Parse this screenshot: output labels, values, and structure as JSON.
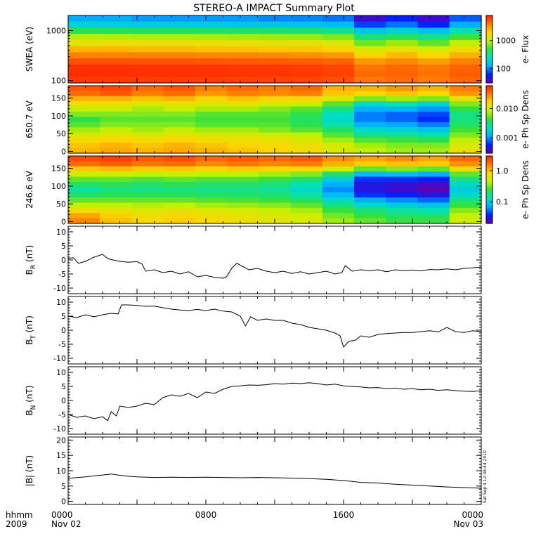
{
  "title": "STEREO-A IMPACT Summary Plot",
  "stamp": "Sat Sep  4 12:38:44 2010",
  "time_axis": {
    "left_label_top": "hhmm",
    "left_label_bottom": "2009",
    "ticks": [
      {
        "hhmm": "0000",
        "date": "Nov 02",
        "frac": 0.0
      },
      {
        "hhmm": "0800",
        "date": "",
        "frac": 0.3333
      },
      {
        "hhmm": "1600",
        "date": "",
        "frac": 0.6667
      },
      {
        "hhmm": "0000",
        "date": "Nov 03",
        "frac": 1.0
      }
    ]
  },
  "colors": {
    "colormap": [
      "#6a00a8",
      "#0020ff",
      "#00b0ff",
      "#00e0c0",
      "#30e040",
      "#c8f000",
      "#ffd400",
      "#ff7a00",
      "#ff2000"
    ],
    "trace": "#000000",
    "frame": "#000000"
  },
  "chart_data": [
    {
      "type": "heatmap",
      "panel": "swea",
      "ylabel": "SWEA (eV)",
      "yscale": "log",
      "ylim": [
        90,
        2000
      ],
      "yticks": [
        "100",
        "1000"
      ],
      "colorbar_label": "e- Flux",
      "colorbar_ticks": [
        "100",
        "1000"
      ],
      "colorbar_scale": "log",
      "colorbar_range": [
        30,
        8000
      ],
      "rows_eV": [
        2000,
        1400,
        1000,
        700,
        500,
        350,
        250,
        180,
        130,
        100,
        90
      ],
      "times_hr": [
        0,
        2,
        4,
        6,
        8,
        10,
        12,
        14,
        16,
        18,
        20,
        22,
        24
      ],
      "z": [
        [
          120,
          120,
          110,
          110,
          110,
          110,
          100,
          100,
          90,
          40,
          60,
          40,
          80
        ],
        [
          200,
          190,
          180,
          180,
          180,
          170,
          170,
          160,
          150,
          70,
          90,
          60,
          120
        ],
        [
          450,
          430,
          420,
          420,
          400,
          400,
          380,
          370,
          320,
          160,
          200,
          150,
          260
        ],
        [
          900,
          880,
          860,
          860,
          840,
          820,
          800,
          780,
          700,
          350,
          420,
          320,
          520
        ],
        [
          1500,
          1500,
          1450,
          1450,
          1400,
          1400,
          1350,
          1300,
          1200,
          650,
          800,
          600,
          950
        ],
        [
          2500,
          2500,
          2400,
          2400,
          2300,
          2300,
          2200,
          2200,
          2000,
          1200,
          1400,
          1100,
          1600
        ],
        [
          3800,
          3800,
          3700,
          3700,
          3600,
          3600,
          3500,
          3400,
          3200,
          2000,
          2400,
          1900,
          2600
        ],
        [
          5500,
          5500,
          5400,
          5400,
          5300,
          5200,
          5100,
          5000,
          4800,
          3200,
          3600,
          3000,
          3800
        ],
        [
          7000,
          7000,
          6900,
          6900,
          6800,
          6700,
          6600,
          6400,
          6000,
          4200,
          4600,
          4000,
          4800
        ],
        [
          7200,
          7200,
          7100,
          7100,
          7000,
          6900,
          6800,
          6600,
          6200,
          4500,
          4800,
          4200,
          5000
        ],
        [
          6500,
          6500,
          6400,
          6400,
          6300,
          6200,
          6100,
          6000,
          5600,
          4000,
          4400,
          3800,
          4600
        ]
      ]
    },
    {
      "type": "heatmap",
      "panel": "pad650",
      "ylabel": "650.7 eV",
      "ylim": [
        -5,
        185
      ],
      "yticks": [
        "0",
        "50",
        "100",
        "150"
      ],
      "colorbar_label": "e- Ph Sp Dens",
      "colorbar_ticks": [
        "0.001",
        "0.010"
      ],
      "colorbar_scale": "log",
      "colorbar_range": [
        0.0003,
        0.06
      ],
      "rows_deg": [
        180,
        165,
        150,
        135,
        120,
        105,
        90,
        75,
        60,
        45,
        30,
        15,
        0
      ],
      "times_hr": [
        0,
        2,
        4,
        6,
        8,
        10,
        12,
        14,
        16,
        18,
        20,
        22,
        24
      ],
      "z": [
        [
          0.04,
          0.045,
          0.035,
          0.04,
          0.03,
          0.035,
          0.03,
          0.035,
          0.02,
          0.02,
          0.025,
          0.02,
          0.03
        ],
        [
          0.035,
          0.04,
          0.03,
          0.035,
          0.025,
          0.03,
          0.028,
          0.03,
          0.018,
          0.015,
          0.018,
          0.015,
          0.025
        ],
        [
          0.02,
          0.02,
          0.018,
          0.02,
          0.016,
          0.018,
          0.016,
          0.015,
          0.01,
          0.006,
          0.007,
          0.006,
          0.012
        ],
        [
          0.012,
          0.012,
          0.01,
          0.011,
          0.01,
          0.011,
          0.009,
          0.008,
          0.005,
          0.002,
          0.0025,
          0.0018,
          0.006
        ],
        [
          0.008,
          0.008,
          0.007,
          0.008,
          0.007,
          0.007,
          0.006,
          0.005,
          0.003,
          0.0012,
          0.0012,
          0.001,
          0.004
        ],
        [
          0.006,
          0.006,
          0.006,
          0.006,
          0.005,
          0.005,
          0.005,
          0.004,
          0.0022,
          0.0009,
          0.0008,
          0.0007,
          0.003
        ],
        [
          0.004,
          0.005,
          0.005,
          0.005,
          0.0045,
          0.0045,
          0.0045,
          0.0035,
          0.002,
          0.0009,
          0.0008,
          0.0006,
          0.003
        ],
        [
          0.005,
          0.006,
          0.006,
          0.006,
          0.005,
          0.005,
          0.005,
          0.004,
          0.0025,
          0.0012,
          0.0011,
          0.0009,
          0.0035
        ],
        [
          0.007,
          0.008,
          0.007,
          0.008,
          0.007,
          0.007,
          0.006,
          0.005,
          0.0035,
          0.002,
          0.0018,
          0.0015,
          0.0045
        ],
        [
          0.01,
          0.011,
          0.01,
          0.011,
          0.01,
          0.01,
          0.009,
          0.008,
          0.005,
          0.003,
          0.0028,
          0.0025,
          0.006
        ],
        [
          0.014,
          0.016,
          0.014,
          0.016,
          0.014,
          0.013,
          0.012,
          0.01,
          0.007,
          0.005,
          0.0045,
          0.004,
          0.008
        ],
        [
          0.018,
          0.02,
          0.018,
          0.02,
          0.018,
          0.016,
          0.015,
          0.013,
          0.009,
          0.007,
          0.006,
          0.006,
          0.01
        ],
        [
          0.02,
          0.022,
          0.02,
          0.022,
          0.02,
          0.018,
          0.016,
          0.014,
          0.01,
          0.008,
          0.007,
          0.007,
          0.012
        ]
      ]
    },
    {
      "type": "heatmap",
      "panel": "pad246",
      "ylabel": "246.6 eV",
      "ylim": [
        -5,
        185
      ],
      "yticks": [
        "0",
        "50",
        "100",
        "150"
      ],
      "colorbar_label": "e- Ph Sp Dens",
      "colorbar_ticks": [
        "0.1",
        "1.0"
      ],
      "colorbar_scale": "log",
      "colorbar_range": [
        0.02,
        3
      ],
      "rows_deg": [
        180,
        165,
        150,
        135,
        120,
        105,
        90,
        75,
        60,
        45,
        30,
        15,
        0
      ],
      "times_hr": [
        0,
        2,
        4,
        6,
        8,
        10,
        12,
        14,
        16,
        18,
        20,
        22,
        24
      ],
      "z": [
        [
          2.2,
          2.4,
          2.0,
          2.2,
          1.8,
          2.0,
          1.8,
          2.0,
          1.4,
          1.2,
          1.4,
          1.2,
          1.8
        ],
        [
          1.8,
          2.0,
          1.7,
          1.8,
          1.5,
          1.7,
          1.5,
          1.6,
          1.1,
          0.9,
          1.0,
          0.9,
          1.4
        ],
        [
          0.9,
          1.0,
          0.9,
          0.9,
          0.8,
          0.9,
          0.8,
          0.8,
          0.5,
          0.3,
          0.35,
          0.3,
          0.7
        ],
        [
          0.5,
          0.5,
          0.45,
          0.5,
          0.45,
          0.45,
          0.4,
          0.35,
          0.2,
          0.08,
          0.09,
          0.07,
          0.3
        ],
        [
          0.3,
          0.3,
          0.28,
          0.3,
          0.28,
          0.28,
          0.25,
          0.2,
          0.1,
          0.04,
          0.04,
          0.035,
          0.18
        ],
        [
          0.2,
          0.22,
          0.2,
          0.22,
          0.2,
          0.2,
          0.18,
          0.14,
          0.07,
          0.03,
          0.028,
          0.025,
          0.12
        ],
        [
          0.15,
          0.18,
          0.17,
          0.18,
          0.17,
          0.17,
          0.16,
          0.12,
          0.06,
          0.03,
          0.026,
          0.022,
          0.1
        ],
        [
          0.2,
          0.22,
          0.22,
          0.22,
          0.2,
          0.2,
          0.19,
          0.15,
          0.08,
          0.04,
          0.035,
          0.03,
          0.12
        ],
        [
          0.3,
          0.3,
          0.3,
          0.3,
          0.28,
          0.27,
          0.25,
          0.2,
          0.12,
          0.07,
          0.06,
          0.05,
          0.18
        ],
        [
          0.45,
          0.45,
          0.42,
          0.45,
          0.4,
          0.38,
          0.35,
          0.3,
          0.18,
          0.12,
          0.1,
          0.09,
          0.25
        ],
        [
          0.7,
          0.6,
          0.55,
          0.6,
          0.55,
          0.5,
          0.45,
          0.4,
          0.25,
          0.18,
          0.15,
          0.14,
          0.35
        ],
        [
          1.2,
          0.9,
          0.7,
          0.8,
          0.7,
          0.65,
          0.55,
          0.5,
          0.32,
          0.25,
          0.2,
          0.2,
          0.45
        ],
        [
          1.5,
          1.0,
          0.8,
          0.9,
          0.8,
          0.7,
          0.6,
          0.55,
          0.38,
          0.3,
          0.25,
          0.25,
          0.5
        ]
      ]
    },
    {
      "type": "line",
      "panel": "br",
      "ylabel": "B",
      "ylabel_sub": "R",
      "ylabel_unit": " (nT)",
      "ylim": [
        -12,
        12
      ],
      "yticks": [
        "-10",
        "-5",
        "0",
        "5",
        "10"
      ],
      "x": [
        0,
        0.3,
        0.6,
        1.0,
        1.5,
        2.0,
        2.3,
        2.6,
        3.0,
        3.5,
        4.0,
        4.3,
        4.5,
        5.0,
        5.5,
        6.0,
        6.5,
        7.0,
        7.5,
        8.0,
        8.5,
        9.0,
        9.2,
        9.5,
        9.8,
        10.5,
        11.0,
        11.5,
        12.0,
        12.5,
        13.0,
        13.5,
        14.0,
        14.5,
        15.0,
        15.5,
        15.9,
        16.1,
        16.5,
        17.0,
        17.5,
        18.0,
        18.5,
        19.0,
        19.5,
        20.0,
        20.5,
        21.0,
        21.5,
        22.0,
        22.5,
        23.0,
        23.5,
        24.0
      ],
      "y": [
        0.5,
        0.8,
        -1.2,
        -0.5,
        1.0,
        2.0,
        0.5,
        0.0,
        -0.5,
        -0.8,
        -0.6,
        -1.5,
        -4.0,
        -3.5,
        -4.5,
        -4.0,
        -5.0,
        -4.2,
        -6.0,
        -5.5,
        -6.2,
        -6.5,
        -6.0,
        -3.0,
        -1.2,
        -3.5,
        -3.0,
        -4.0,
        -4.5,
        -4.0,
        -4.8,
        -4.2,
        -5.0,
        -4.5,
        -4.0,
        -5.0,
        -4.5,
        -2.0,
        -4.0,
        -3.5,
        -3.8,
        -3.5,
        -4.2,
        -3.5,
        -3.8,
        -3.6,
        -3.9,
        -3.4,
        -3.5,
        -3.2,
        -3.5,
        -3.0,
        -2.8,
        -2.5
      ]
    },
    {
      "type": "line",
      "panel": "bt",
      "ylabel": "B",
      "ylabel_sub": "T",
      "ylabel_unit": " (nT)",
      "ylim": [
        -12,
        12
      ],
      "yticks": [
        "-10",
        "-5",
        "0",
        "5",
        "10"
      ],
      "x": [
        0,
        0.5,
        1.0,
        1.5,
        2.0,
        2.5,
        2.9,
        3.1,
        3.5,
        4.0,
        4.5,
        5.0,
        5.5,
        6.0,
        6.5,
        7.0,
        7.5,
        8.0,
        8.5,
        9.0,
        9.5,
        10.0,
        10.3,
        10.6,
        11.0,
        11.5,
        12.0,
        12.5,
        13.0,
        13.5,
        14.0,
        14.5,
        15.0,
        15.5,
        15.8,
        16.0,
        16.3,
        16.7,
        17.0,
        17.5,
        18.0,
        18.5,
        19.0,
        19.5,
        20.0,
        20.5,
        21.0,
        21.5,
        22.0,
        22.5,
        23.0,
        23.5,
        24.0
      ],
      "y": [
        5.0,
        4.5,
        5.5,
        4.8,
        5.5,
        6.0,
        5.8,
        9.0,
        9.0,
        8.8,
        8.5,
        8.6,
        8.0,
        7.5,
        7.2,
        7.0,
        7.4,
        7.0,
        7.5,
        6.8,
        6.5,
        5.0,
        1.5,
        4.8,
        3.5,
        4.0,
        3.5,
        3.5,
        2.5,
        2.0,
        1.0,
        0.5,
        0.0,
        -1.0,
        -2.0,
        -6.0,
        -4.0,
        -3.5,
        -2.0,
        -2.5,
        -1.5,
        -1.2,
        -1.0,
        -0.8,
        -0.8,
        -0.5,
        -0.2,
        -0.6,
        1.0,
        -0.5,
        -0.8,
        -0.2,
        -0.5
      ]
    },
    {
      "type": "line",
      "panel": "bn",
      "ylabel": "B",
      "ylabel_sub": "N",
      "ylabel_unit": " (nT)",
      "ylim": [
        -12,
        12
      ],
      "yticks": [
        "-10",
        "-5",
        "0",
        "5",
        "10"
      ],
      "x": [
        0,
        0.5,
        1.0,
        1.5,
        2.0,
        2.3,
        2.5,
        2.8,
        3.0,
        3.5,
        4.0,
        4.5,
        5.0,
        5.5,
        6.0,
        6.5,
        7.0,
        7.5,
        8.0,
        8.5,
        9.0,
        9.5,
        10.0,
        10.5,
        11.0,
        11.5,
        12.0,
        12.5,
        13.0,
        13.5,
        14.0,
        14.5,
        15.0,
        15.5,
        16.0,
        16.5,
        17.0,
        17.5,
        18.0,
        18.5,
        19.0,
        19.5,
        20.0,
        20.5,
        21.0,
        21.5,
        22.0,
        22.5,
        23.0,
        23.5,
        24.0
      ],
      "y": [
        -5.0,
        -6.0,
        -5.5,
        -6.5,
        -5.8,
        -7.2,
        -4.0,
        -5.5,
        -2.0,
        -2.5,
        -2.0,
        -1.0,
        -1.5,
        1.0,
        2.0,
        1.5,
        2.5,
        1.0,
        3.0,
        2.5,
        4.0,
        5.0,
        5.2,
        5.5,
        5.4,
        5.6,
        6.0,
        5.8,
        6.2,
        6.0,
        6.3,
        6.0,
        5.5,
        5.8,
        5.2,
        5.0,
        4.8,
        4.5,
        4.6,
        4.2,
        4.4,
        4.0,
        4.2,
        3.8,
        4.0,
        3.6,
        3.8,
        3.5,
        3.3,
        3.2,
        3.5
      ]
    },
    {
      "type": "line",
      "panel": "bmag",
      "ylabel": "|B| (nT)",
      "ylim": [
        -1,
        21
      ],
      "yticks": [
        "0",
        "5",
        "10",
        "15",
        "20"
      ],
      "x": [
        0,
        1.0,
        2.0,
        2.5,
        3.0,
        3.5,
        4.0,
        5.0,
        6.0,
        7.0,
        8.0,
        9.0,
        10.0,
        11.0,
        12.0,
        13.0,
        14.0,
        15.0,
        15.5,
        16.0,
        16.5,
        17.0,
        18.0,
        19.0,
        20.0,
        21.0,
        22.0,
        23.0,
        24.0
      ],
      "y": [
        7.5,
        8.0,
        8.6,
        8.9,
        8.5,
        8.2,
        8.0,
        7.8,
        7.9,
        7.8,
        7.9,
        7.8,
        7.7,
        7.8,
        7.7,
        7.6,
        7.4,
        7.2,
        7.0,
        6.8,
        6.5,
        6.2,
        6.0,
        5.6,
        5.3,
        5.0,
        4.7,
        4.5,
        4.3
      ]
    }
  ]
}
